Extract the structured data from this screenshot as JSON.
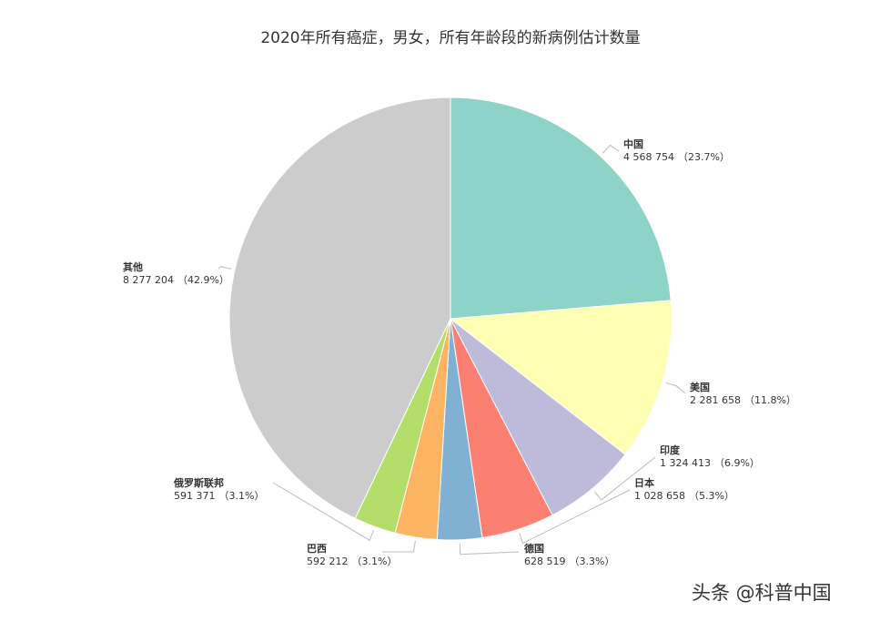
{
  "chart_data": {
    "type": "pie",
    "title": "2020年所有癌症，男女，所有年龄段的新病例估计数量",
    "categories": [
      "中国",
      "美国",
      "印度",
      "日本",
      "德国",
      "巴西",
      "俄罗斯联邦",
      "其他"
    ],
    "values": [
      4568754,
      2281658,
      1324413,
      1028658,
      628519,
      592212,
      591371,
      8277204
    ],
    "value_labels": [
      "4 568 754",
      "2 281 658",
      "1 324 413",
      "1 028 658",
      "628 519",
      "592 212",
      "591 371",
      "8 277 204"
    ],
    "percents": [
      23.7,
      11.8,
      6.9,
      5.3,
      3.3,
      3.1,
      3.1,
      42.9
    ],
    "percent_labels": [
      "（23.7%）",
      "（11.8%）",
      "（6.9%）",
      "（5.3%）",
      "（3.3%）",
      "（3.1%）",
      "（3.1%）",
      "（42.9%）"
    ],
    "colors": [
      "#8dd3c7",
      "#ffffb3",
      "#bebada",
      "#fb8072",
      "#80b1d3",
      "#fdb462",
      "#b3de69",
      "#cccccc"
    ]
  },
  "watermark": "头条 @科普中国"
}
